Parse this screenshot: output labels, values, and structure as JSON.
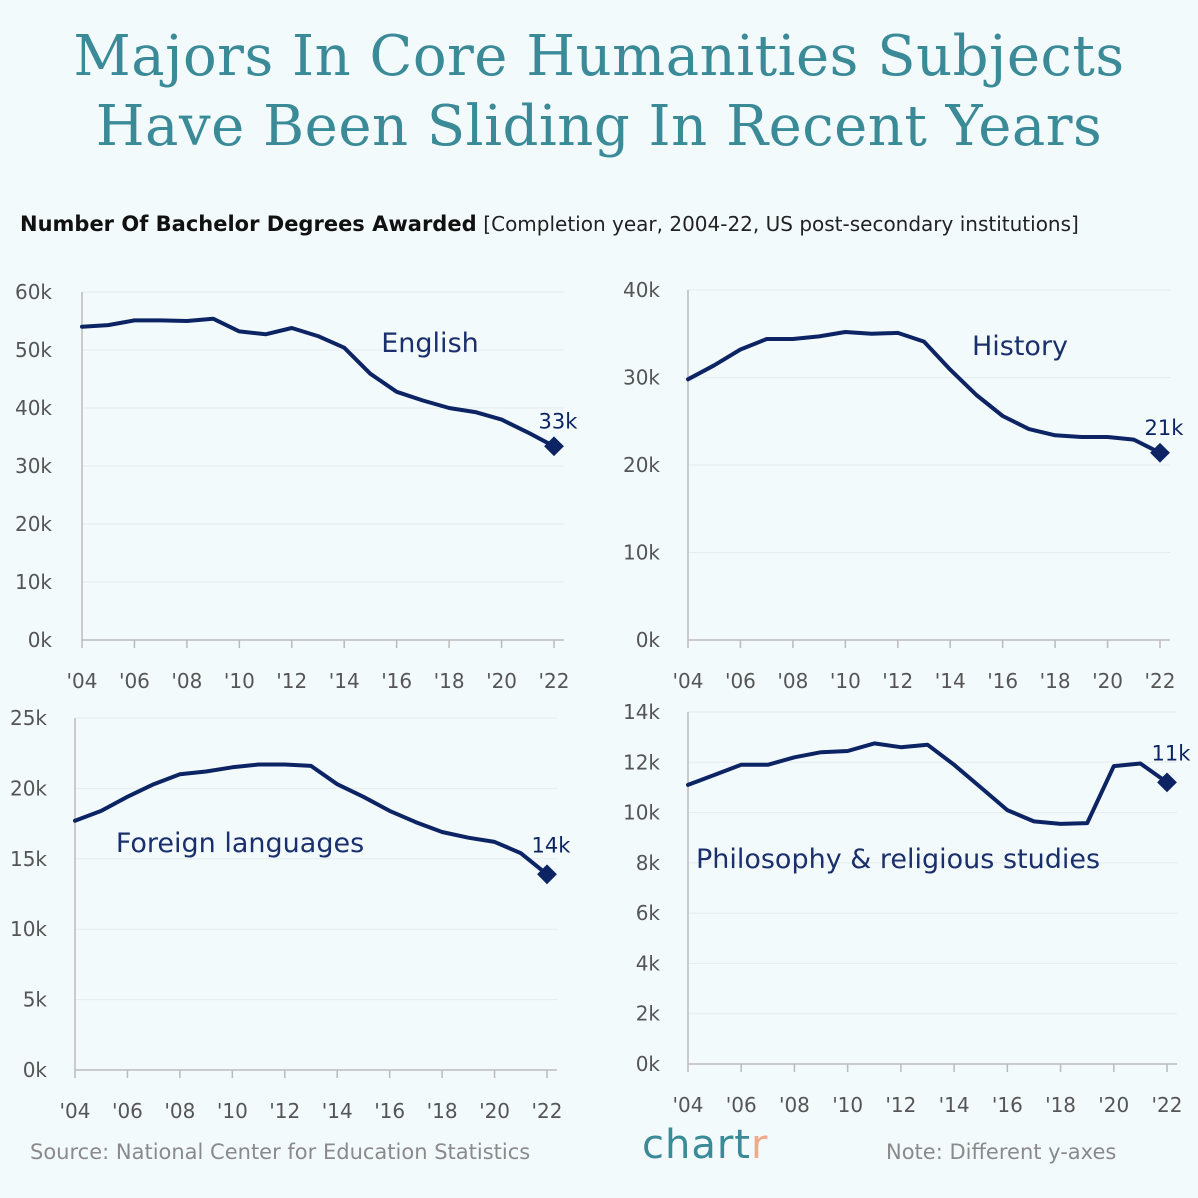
{
  "title_line1": "Majors In Core Humanities Subjects",
  "title_line2": "Have Been Sliding In Recent Years",
  "subtitle_bold": "Number Of Bachelor Degrees Awarded",
  "subtitle_note": "[Completion year, 2004-22, US post-secondary institutions]",
  "footer": {
    "source": "Source: National Center for Education Statistics",
    "brand_main": "chart",
    "brand_accent": "r",
    "note": "Note: Different y-axes"
  },
  "colors": {
    "line": "#0d2464",
    "title": "#3a8a98",
    "grid": "#e4ecef",
    "axis": "#bbbbbb"
  },
  "chart_data": [
    {
      "type": "line",
      "series_name": "English",
      "x_tick_labels": [
        "'04",
        "'06",
        "'08",
        "'10",
        "'12",
        "'14",
        "'16",
        "'18",
        "'20",
        "'22"
      ],
      "y_tick_labels": [
        "0k",
        "10k",
        "20k",
        "30k",
        "40k",
        "50k",
        "60k"
      ],
      "y_ticks": [
        0,
        10,
        20,
        30,
        40,
        50,
        60
      ],
      "ylim": [
        0,
        60
      ],
      "x": [
        2004,
        2005,
        2006,
        2007,
        2008,
        2009,
        2010,
        2011,
        2012,
        2013,
        2014,
        2015,
        2016,
        2017,
        2018,
        2019,
        2020,
        2021,
        2022
      ],
      "values": [
        54.0,
        54.3,
        55.1,
        55.1,
        55.0,
        55.4,
        53.2,
        52.7,
        53.8,
        52.4,
        50.4,
        45.9,
        42.8,
        41.3,
        40.0,
        39.3,
        38.0,
        35.8,
        33.4
      ],
      "end_label": "33k",
      "units": "thousands"
    },
    {
      "type": "line",
      "series_name": "History",
      "x_tick_labels": [
        "'04",
        "'06",
        "'08",
        "'10",
        "'12",
        "'14",
        "'16",
        "'18",
        "'20",
        "'22"
      ],
      "y_tick_labels": [
        "0k",
        "10k",
        "20k",
        "30k",
        "40k"
      ],
      "y_ticks": [
        0,
        10,
        20,
        30,
        40
      ],
      "ylim": [
        0,
        40
      ],
      "x": [
        2004,
        2005,
        2006,
        2007,
        2008,
        2009,
        2010,
        2011,
        2012,
        2013,
        2014,
        2015,
        2016,
        2017,
        2018,
        2019,
        2020,
        2021,
        2022
      ],
      "values": [
        29.8,
        31.4,
        33.2,
        34.4,
        34.4,
        34.7,
        35.2,
        35.0,
        35.1,
        34.1,
        30.9,
        28.0,
        25.6,
        24.1,
        23.4,
        23.2,
        23.2,
        22.9,
        21.4
      ],
      "end_label": "21k",
      "units": "thousands"
    },
    {
      "type": "line",
      "series_name": "Foreign languages",
      "x_tick_labels": [
        "'04",
        "'06",
        "'08",
        "'10",
        "'12",
        "'14",
        "'16",
        "'18",
        "'20",
        "'22"
      ],
      "y_tick_labels": [
        "0k",
        "5k",
        "10k",
        "15k",
        "20k",
        "25k"
      ],
      "y_ticks": [
        0,
        5,
        10,
        15,
        20,
        25
      ],
      "ylim": [
        0,
        25
      ],
      "x": [
        2004,
        2005,
        2006,
        2007,
        2008,
        2009,
        2010,
        2011,
        2012,
        2013,
        2014,
        2015,
        2016,
        2017,
        2018,
        2019,
        2020,
        2021,
        2022
      ],
      "values": [
        17.7,
        18.4,
        19.4,
        20.3,
        21.0,
        21.2,
        21.5,
        21.7,
        21.7,
        21.6,
        20.3,
        19.4,
        18.4,
        17.6,
        16.9,
        16.5,
        16.2,
        15.4,
        13.9
      ],
      "end_label": "14k",
      "units": "thousands"
    },
    {
      "type": "line",
      "series_name": "Philosophy & religious studies",
      "x_tick_labels": [
        "'04",
        "'06",
        "'08",
        "'10",
        "'12",
        "'14",
        "'16",
        "'18",
        "'20",
        "'22"
      ],
      "y_tick_labels": [
        "0k",
        "2k",
        "4k",
        "6k",
        "8k",
        "10k",
        "12k",
        "14k"
      ],
      "y_ticks": [
        0,
        2,
        4,
        6,
        8,
        10,
        12,
        14
      ],
      "ylim": [
        0,
        14
      ],
      "x": [
        2004,
        2005,
        2006,
        2007,
        2008,
        2009,
        2010,
        2011,
        2012,
        2013,
        2014,
        2015,
        2016,
        2017,
        2018,
        2019,
        2020,
        2021,
        2022
      ],
      "values": [
        11.1,
        11.5,
        11.9,
        11.9,
        12.2,
        12.4,
        12.45,
        12.75,
        12.6,
        12.7,
        11.9,
        11.0,
        10.1,
        9.65,
        9.55,
        9.58,
        11.85,
        11.95,
        11.2
      ],
      "end_label": "11k",
      "units": "thousands"
    }
  ]
}
